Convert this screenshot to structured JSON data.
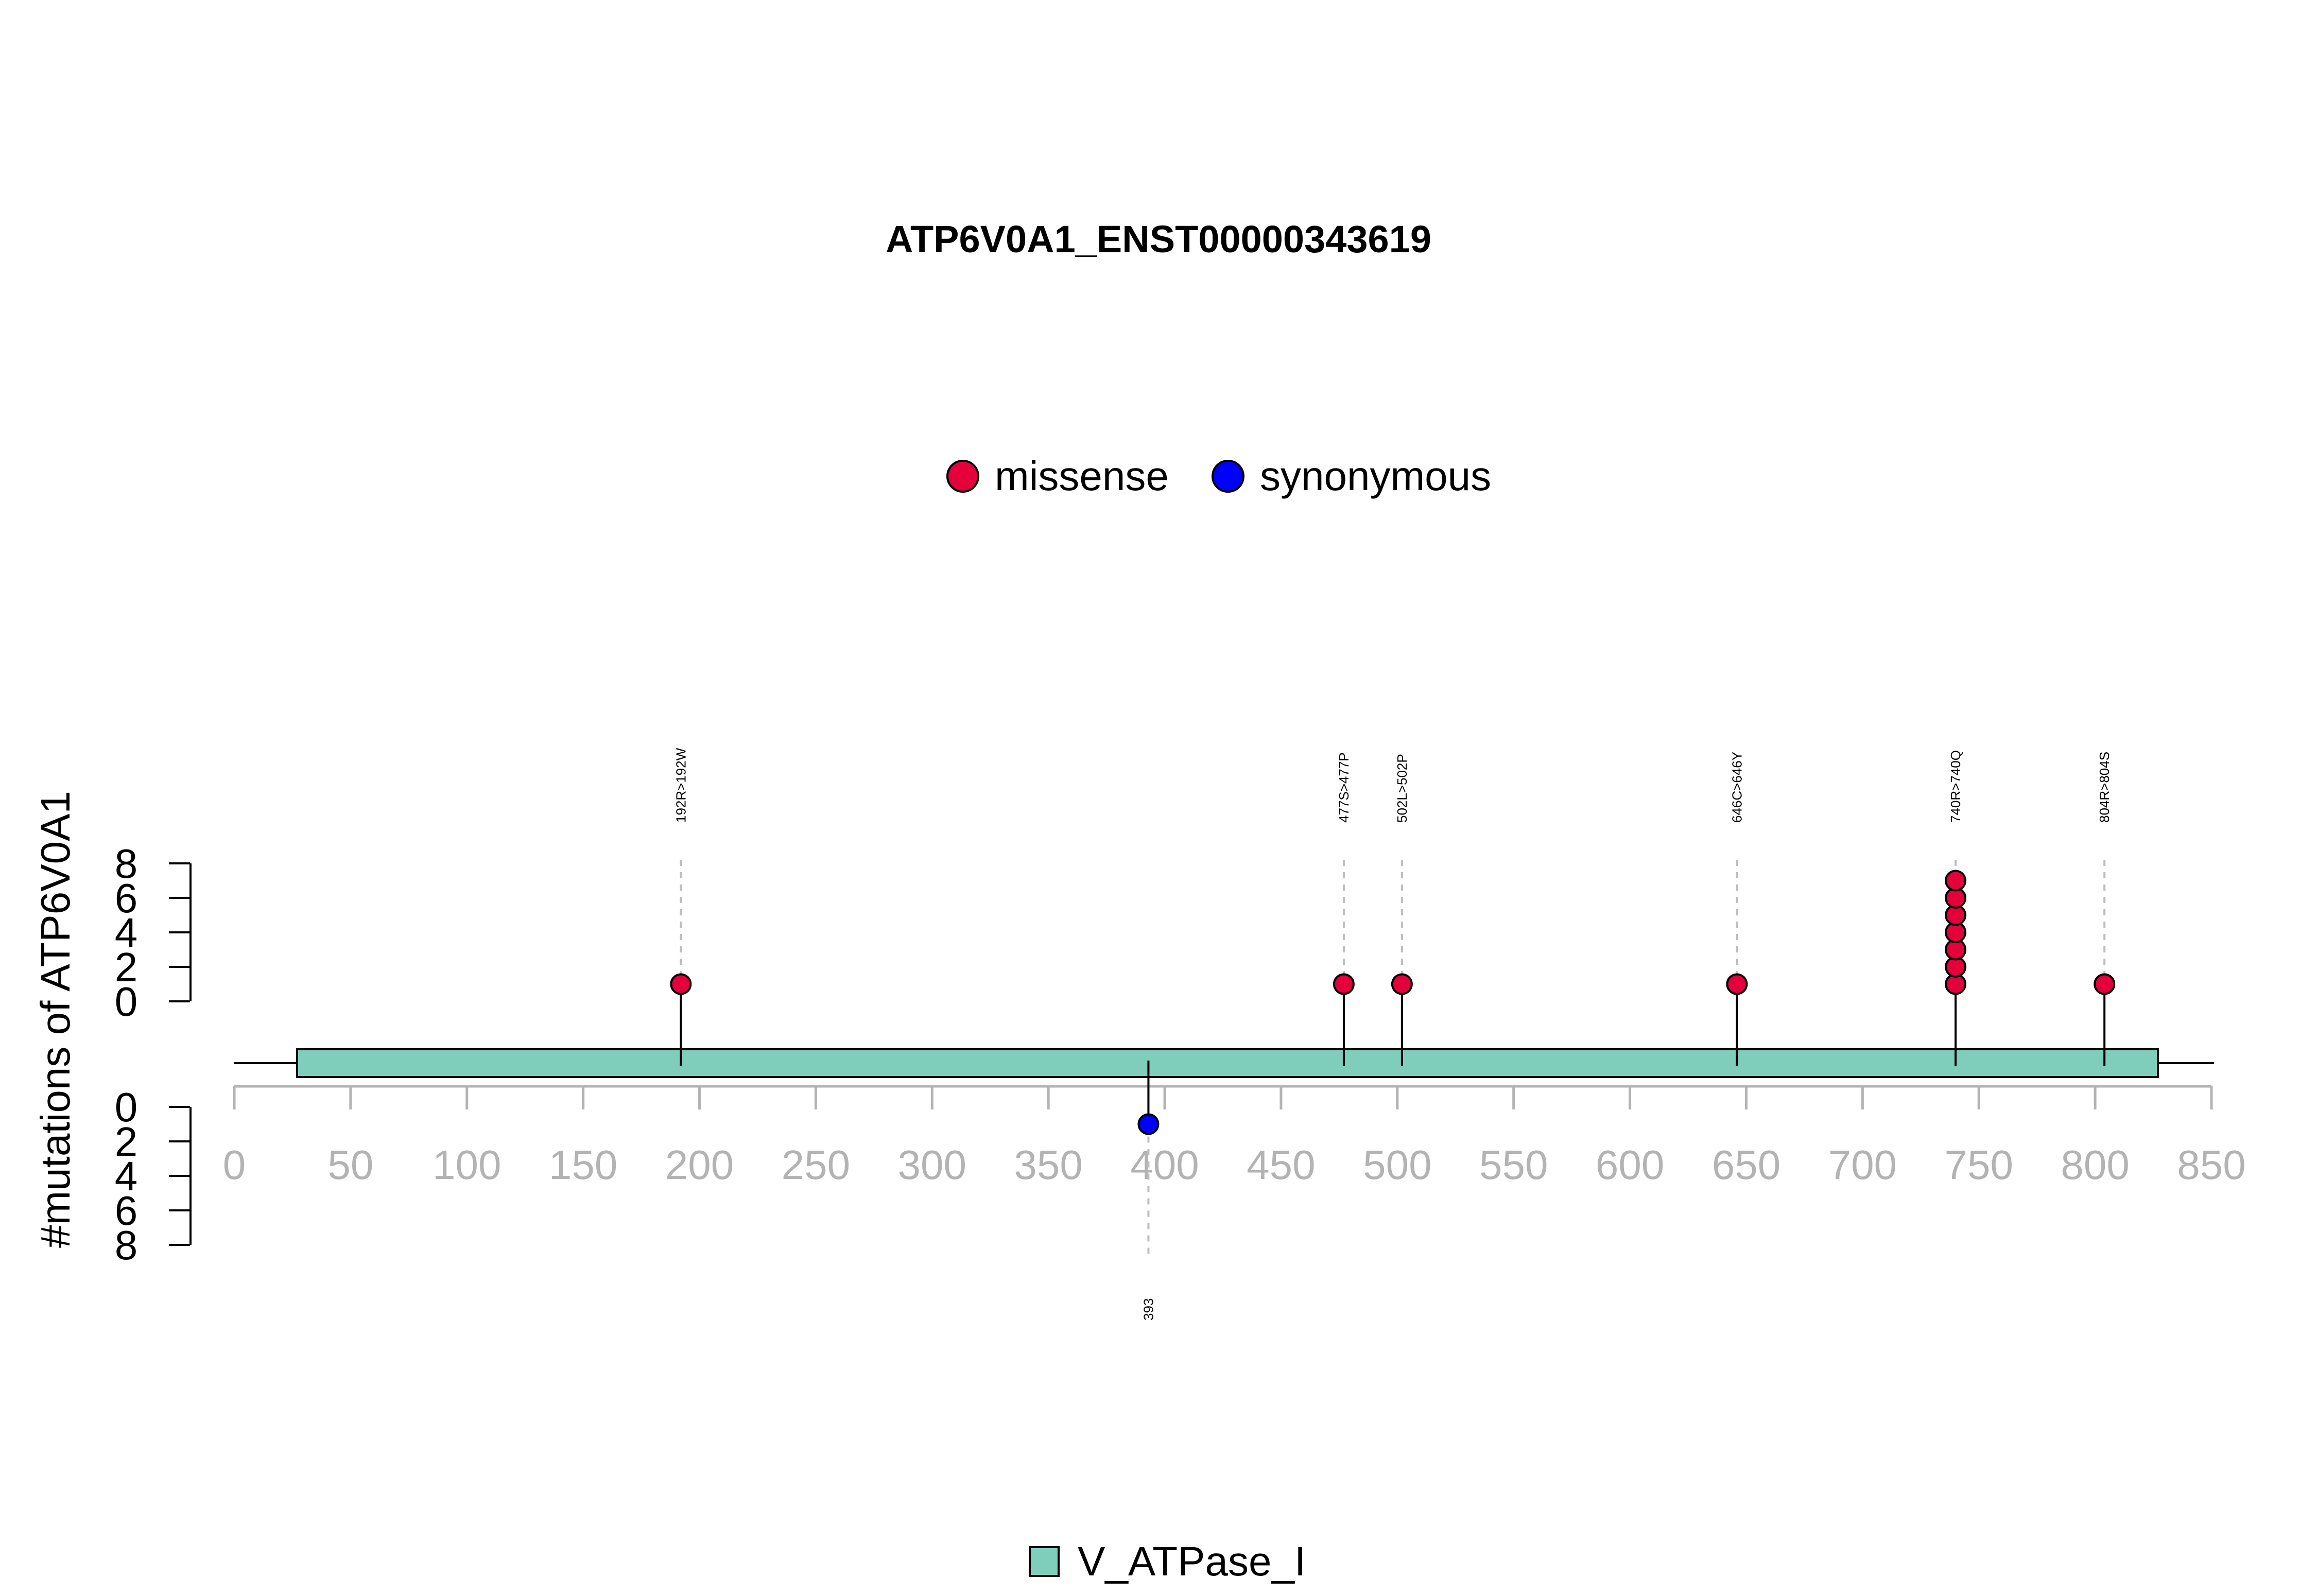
{
  "chart_data": {
    "type": "lollipop",
    "title": "ATP6V0A1_ENST00000343619",
    "ylabel": "#mutations of ATP6V0A1",
    "xlim": [
      0,
      850
    ],
    "x_ticks": [
      0,
      50,
      100,
      150,
      200,
      250,
      300,
      350,
      400,
      450,
      500,
      550,
      600,
      650,
      700,
      750,
      800,
      850
    ],
    "y_ticks_top": [
      0,
      2,
      4,
      6,
      8
    ],
    "y_ticks_bottom": [
      0,
      2,
      4,
      6,
      8
    ],
    "ylim": [
      0,
      8
    ],
    "legend": [
      {
        "name": "missense",
        "color": "#e4003a"
      },
      {
        "name": "synonymous",
        "color": "#0000ff"
      }
    ],
    "protein": {
      "start": 0,
      "end": 850
    },
    "domains": [
      {
        "name": "V_ATPase_I",
        "start": 27,
        "end": 827,
        "color": "#7fcdbb"
      }
    ],
    "mutations": [
      {
        "position": 192,
        "label": "192R>192W",
        "type": "missense",
        "count": 1,
        "side": "top"
      },
      {
        "position": 477,
        "label": "477S>477P",
        "type": "missense",
        "count": 1,
        "side": "top"
      },
      {
        "position": 502,
        "label": "502L>502P",
        "type": "missense",
        "count": 1,
        "side": "top"
      },
      {
        "position": 646,
        "label": "646C>646Y",
        "type": "missense",
        "count": 1,
        "side": "top"
      },
      {
        "position": 740,
        "label": "740R>740Q",
        "type": "missense",
        "count": 7,
        "side": "top"
      },
      {
        "position": 804,
        "label": "804R>804S",
        "type": "missense",
        "count": 1,
        "side": "top"
      },
      {
        "position": 393,
        "label": "393",
        "type": "synonymous",
        "count": 1,
        "side": "bottom"
      }
    ]
  }
}
